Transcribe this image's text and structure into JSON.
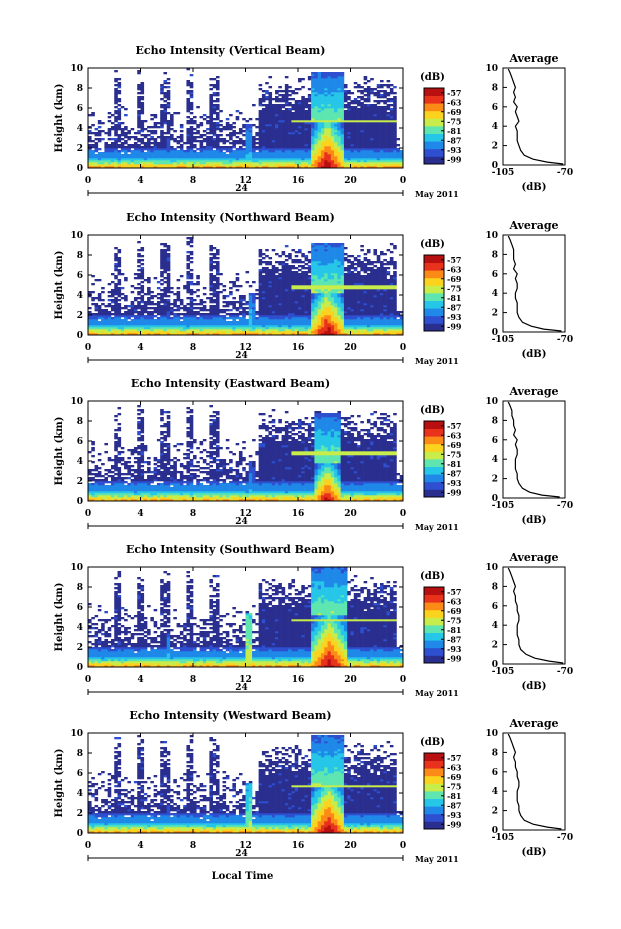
{
  "chart_data": {
    "type": "heatmap",
    "common": {
      "xlabel": "Local Time",
      "x_ticks": [
        "0",
        "4",
        "8",
        "12",
        "16",
        "20",
        "0"
      ],
      "xlim": [
        0,
        24
      ],
      "date_day": "24",
      "date_month": "May 2011",
      "ylabel": "Height (km)",
      "y_ticks": [
        "0",
        "2",
        "4",
        "6",
        "8",
        "10"
      ],
      "ylim": [
        0,
        10
      ],
      "colorbar_title": "(dB)",
      "colorbar_ticks": [
        "-57",
        "-63",
        "-69",
        "-75",
        "-81",
        "-87",
        "-93",
        "-99"
      ],
      "colorbar_range": [
        -102,
        -54
      ],
      "colormap": [
        "#2a2f8f",
        "#2e4fd0",
        "#1f88e8",
        "#26c6e8",
        "#5fe6b0",
        "#c8ec4a",
        "#fbd21e",
        "#fb8a16",
        "#e8321c",
        "#b80f10"
      ],
      "profile_title": "Average",
      "profile_xlabel": "(dB)",
      "profile_x_ticks": [
        "-105",
        "-70"
      ],
      "profile_xlim": [
        -105,
        -70
      ],
      "profile_y_ticks": [
        "0",
        "2",
        "4",
        "6",
        "8",
        "10"
      ],
      "profile_heights_km": [
        0.1,
        0.3,
        0.6,
        1.0,
        1.5,
        2.0,
        2.5,
        3.0,
        3.5,
        4.0,
        4.5,
        5.0,
        5.5,
        6.0,
        6.5,
        7.0,
        7.5,
        8.0,
        8.5,
        9.0,
        9.5,
        9.9
      ]
    },
    "panels": [
      {
        "title": "Echo Intensity (Vertical Beam)",
        "profile_db": [
          -71,
          -80,
          -88,
          -93,
          -95,
          -96,
          -97,
          -97,
          -97,
          -98,
          -96,
          -97,
          -98,
          -97,
          -99,
          -98,
          -99,
          -98,
          -99,
          -100,
          -101,
          -102
        ],
        "events": [
          {
            "t_start": 17.0,
            "t_end": 19.5,
            "top_km": 4.6,
            "peak_db": -54,
            "kind": "convective-core"
          },
          {
            "t_start": 12.0,
            "t_end": 12.5,
            "top_km": 4.5,
            "peak_db": -81,
            "kind": "column"
          },
          {
            "t_start": 6.0,
            "t_end": 6.3,
            "top_km": 3.0,
            "peak_db": -87,
            "kind": "column"
          }
        ],
        "bright_band_km": 4.7,
        "bright_band_from_hour": 15.5
      },
      {
        "title": "Echo Intensity (Northward Beam)",
        "profile_db": [
          -72,
          -82,
          -89,
          -94,
          -96,
          -97,
          -97,
          -97,
          -98,
          -98,
          -97,
          -97,
          -98,
          -97,
          -99,
          -98,
          -99,
          -99,
          -99,
          -100,
          -101,
          -102
        ],
        "events": [
          {
            "t_start": 17.0,
            "t_end": 19.5,
            "top_km": 4.3,
            "peak_db": -54,
            "kind": "convective-core"
          },
          {
            "t_start": 12.2,
            "t_end": 12.7,
            "top_km": 4.2,
            "peak_db": -81,
            "kind": "column"
          },
          {
            "t_start": 6.0,
            "t_end": 6.3,
            "top_km": 2.5,
            "peak_db": -87,
            "kind": "column"
          }
        ],
        "bright_band_km": 4.8,
        "bright_band_from_hour": 15.5
      },
      {
        "title": "Echo Intensity (Eastward Beam)",
        "profile_db": [
          -73,
          -83,
          -90,
          -94,
          -96,
          -97,
          -97,
          -98,
          -98,
          -98,
          -97,
          -97,
          -98,
          -97,
          -99,
          -98,
          -99,
          -99,
          -100,
          -100,
          -101,
          -102
        ],
        "events": [
          {
            "t_start": 17.2,
            "t_end": 19.3,
            "top_km": 3.8,
            "peak_db": -56,
            "kind": "convective-core"
          },
          {
            "t_start": 12.2,
            "t_end": 12.7,
            "top_km": 4.0,
            "peak_db": -84,
            "kind": "column"
          },
          {
            "t_start": 6.0,
            "t_end": 6.3,
            "top_km": 2.5,
            "peak_db": -90,
            "kind": "column"
          }
        ],
        "bright_band_km": 4.8,
        "bright_band_from_hour": 15.5
      },
      {
        "title": "Echo Intensity (Southward Beam)",
        "profile_db": [
          -71,
          -79,
          -87,
          -92,
          -95,
          -96,
          -96,
          -97,
          -97,
          -97,
          -96,
          -96,
          -97,
          -97,
          -98,
          -98,
          -99,
          -98,
          -99,
          -100,
          -101,
          -102
        ],
        "events": [
          {
            "t_start": 17.0,
            "t_end": 19.8,
            "top_km": 5.2,
            "peak_db": -55,
            "kind": "convective-core"
          },
          {
            "t_start": 11.9,
            "t_end": 12.6,
            "top_km": 5.5,
            "peak_db": -72,
            "kind": "column"
          },
          {
            "t_start": 6.0,
            "t_end": 6.3,
            "top_km": 3.5,
            "peak_db": -84,
            "kind": "column"
          }
        ],
        "bright_band_km": 4.7,
        "bright_band_from_hour": 15.5
      },
      {
        "title": "Echo Intensity (Westward Beam)",
        "profile_db": [
          -72,
          -80,
          -88,
          -93,
          -95,
          -96,
          -96,
          -97,
          -97,
          -97,
          -96,
          -96,
          -97,
          -97,
          -98,
          -98,
          -99,
          -98,
          -99,
          -100,
          -101,
          -102
        ],
        "events": [
          {
            "t_start": 17.0,
            "t_end": 19.6,
            "top_km": 4.8,
            "peak_db": -54,
            "kind": "convective-core"
          },
          {
            "t_start": 12.0,
            "t_end": 12.6,
            "top_km": 5.0,
            "peak_db": -75,
            "kind": "column"
          },
          {
            "t_start": 6.0,
            "t_end": 6.3,
            "top_km": 3.0,
            "peak_db": -87,
            "kind": "column"
          }
        ],
        "bright_band_km": 4.7,
        "bright_band_from_hour": 15.5
      }
    ]
  }
}
